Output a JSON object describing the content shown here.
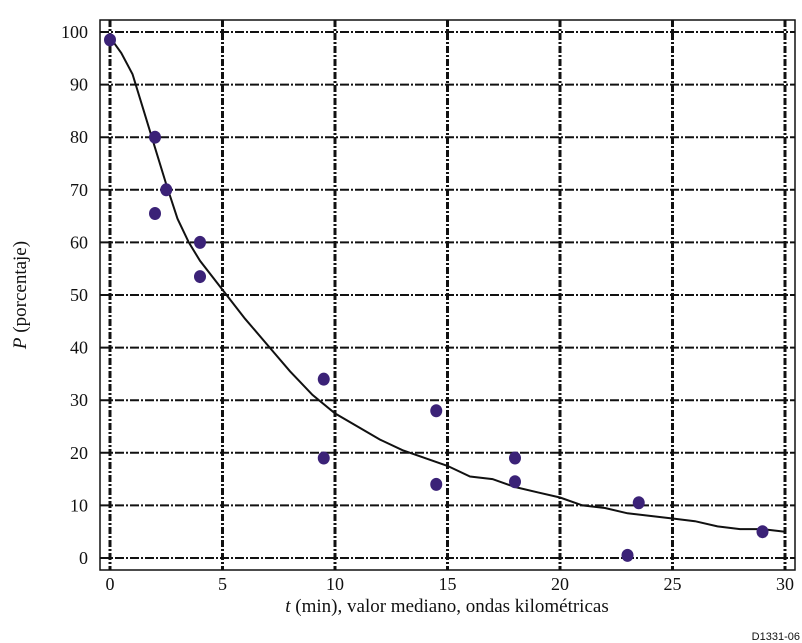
{
  "chart_data": {
    "type": "scatter",
    "xlabel_var": "t",
    "xlabel_rest": " (min), valor mediano, ondas kilométricas",
    "ylabel_var": "P",
    "ylabel_rest": " (porcentaje)",
    "figure_code": "D1331-06",
    "xlim": [
      0,
      30
    ],
    "ylim": [
      0,
      100
    ],
    "xticks": [
      0,
      5,
      10,
      15,
      20,
      25,
      30
    ],
    "yticks": [
      0,
      10,
      20,
      30,
      40,
      50,
      60,
      70,
      80,
      90,
      100
    ],
    "grid": true,
    "colors": {
      "points": "#3b2277",
      "curve": "#111111",
      "grid": "#111111"
    },
    "series": [
      {
        "kind": "points",
        "x": [
          0,
          2,
          2,
          2.5,
          4,
          4,
          9.5,
          9.5,
          14.5,
          14.5,
          18,
          18,
          23,
          23.5,
          29
        ],
        "y": [
          98.5,
          80,
          65.5,
          70,
          60,
          53.5,
          34,
          19,
          28,
          14,
          19,
          14.5,
          0.5,
          10.5,
          5
        ]
      },
      {
        "kind": "curve",
        "x": [
          0,
          0.5,
          1,
          1.5,
          2,
          2.5,
          3,
          3.5,
          4,
          5,
          6,
          7,
          8,
          9,
          10,
          11,
          12,
          13,
          14,
          15,
          16,
          17,
          18,
          19,
          20,
          21,
          22,
          23,
          24,
          25,
          26,
          27,
          28,
          29,
          30
        ],
        "y": [
          99,
          96,
          92,
          85,
          78,
          71,
          64.5,
          60,
          56.5,
          51,
          45.5,
          40.5,
          35.5,
          31,
          27.5,
          25,
          22.5,
          20.5,
          19,
          17.5,
          15.5,
          15,
          13.5,
          12.5,
          11.5,
          10,
          9.5,
          8.5,
          8,
          7.5,
          7,
          6,
          5.5,
          5.5,
          5
        ]
      }
    ]
  }
}
